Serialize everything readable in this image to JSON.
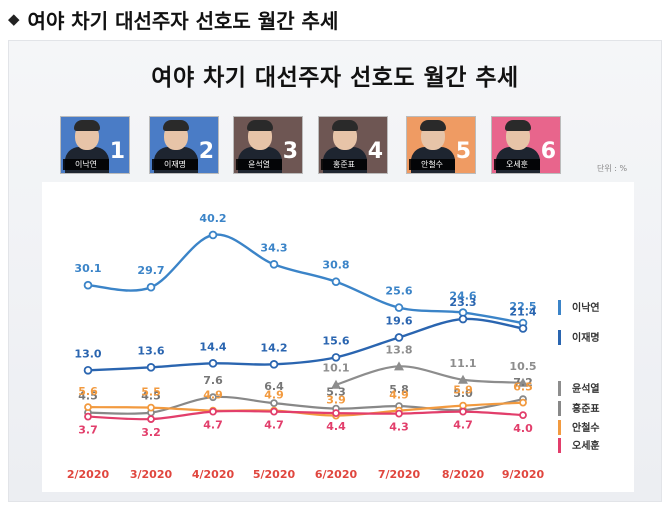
{
  "page": {
    "heading": "여야 차기 대선주자 선호도 월간 추세",
    "heading_icon": "diamond-icon"
  },
  "candidates": [
    {
      "name": "이낙연",
      "rank": "1",
      "bg": "#4a7cc6"
    },
    {
      "name": "이재명",
      "rank": "2",
      "bg": "#4a7cc6"
    },
    {
      "name": "윤석열",
      "rank": "3",
      "bg": "#6e5653"
    },
    {
      "name": "홍준표",
      "rank": "4",
      "bg": "#6e5653"
    },
    {
      "name": "안철수",
      "rank": "5",
      "bg": "#ef9b63"
    },
    {
      "name": "오세훈",
      "rank": "6",
      "bg": "#e8658c"
    }
  ],
  "chart_data": {
    "type": "line",
    "title": "여야 차기 대선주자 선호도 월간 추세",
    "unit_label": "단위 : %",
    "categories": [
      "2/2020",
      "3/2020",
      "4/2020",
      "5/2020",
      "6/2020",
      "7/2020",
      "8/2020",
      "9/2020"
    ],
    "xlabel": "",
    "ylabel": "",
    "ylim": [
      0,
      42
    ],
    "series": [
      {
        "name": "이낙연",
        "color": "#3b84c8",
        "values": [
          30.1,
          29.7,
          40.2,
          34.3,
          30.8,
          25.6,
          24.6,
          22.5
        ]
      },
      {
        "name": "이재명",
        "color": "#2a65b0",
        "values": [
          13.0,
          13.6,
          14.4,
          14.2,
          15.6,
          19.6,
          23.3,
          21.4
        ]
      },
      {
        "name": "윤석열",
        "color": "#8d8d8d",
        "values": [
          null,
          null,
          null,
          null,
          10.1,
          13.8,
          11.1,
          10.5
        ]
      },
      {
        "name": "홍준표",
        "color": "#888888",
        "values": [
          4.5,
          4.5,
          7.6,
          6.4,
          5.3,
          5.8,
          5.0,
          7.2
        ]
      },
      {
        "name": "안철수",
        "color": "#f29a3f",
        "values": [
          5.6,
          5.5,
          4.9,
          4.9,
          3.9,
          4.9,
          5.9,
          6.5
        ]
      },
      {
        "name": "오세훈",
        "color": "#e23e6b",
        "values": [
          3.7,
          3.2,
          4.7,
          4.7,
          4.4,
          4.3,
          4.7,
          4.0
        ]
      }
    ],
    "value_labels": [
      [
        "30.1",
        "29.7",
        "40.2",
        "34.3",
        "30.8",
        "25.6",
        "24.6",
        "22.5"
      ],
      [
        "13.0",
        "13.6",
        "14.4",
        "14.2",
        "15.6",
        "19.6",
        "23.3",
        "21.4"
      ],
      [
        "",
        "",
        "",
        "",
        "10.1",
        "13.8",
        "11.1",
        "10.5"
      ],
      [
        "4.5",
        "4.5",
        "7.6",
        "6.4",
        "5.3",
        "5.8",
        "5.0",
        "7.2"
      ],
      [
        "5.6",
        "5.5",
        "4.9",
        "4.9",
        "3.9",
        "4.9",
        "5.9",
        "6.5"
      ],
      [
        "3.7",
        "3.2",
        "4.7",
        "4.7",
        "4.4",
        "4.3",
        "4.7",
        "4.0"
      ]
    ],
    "legend": [
      "이낙연",
      "이재명",
      "윤석열",
      "홍준표",
      "안철수",
      "오세훈"
    ]
  }
}
